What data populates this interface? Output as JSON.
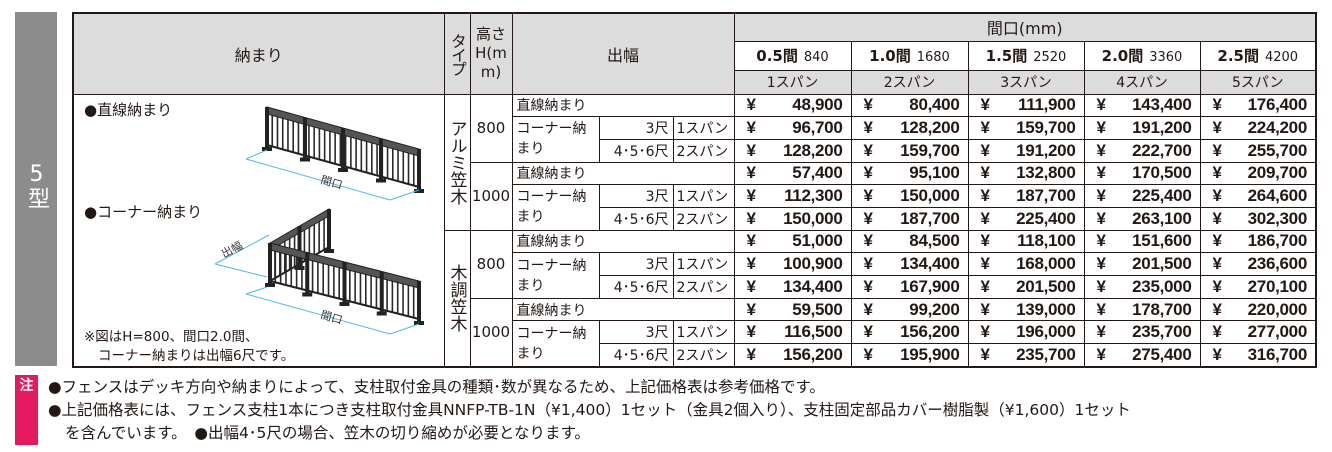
{
  "sidebar": {
    "label": "5型",
    "color": "#8c8c8c"
  },
  "table": {
    "headers": {
      "osamari": "納まり",
      "type": "タイプ",
      "height": "高さH(mm)",
      "debaba": "出幅",
      "maguchi": "間口(mm)",
      "sizes": [
        {
          "ken": "0.5間",
          "mm": "840",
          "span": "1スパン"
        },
        {
          "ken": "1.0間",
          "mm": "1680",
          "span": "2スパン"
        },
        {
          "ken": "1.5間",
          "mm": "2520",
          "span": "3スパン"
        },
        {
          "ken": "2.0間",
          "mm": "3360",
          "span": "4スパン"
        },
        {
          "ken": "2.5間",
          "mm": "4200",
          "span": "5スパン"
        }
      ]
    },
    "illustration": {
      "straight_label": "●直線納まり",
      "corner_label": "●コーナー納まり",
      "maguchi_dim": "間口",
      "debaba_dim": "出幅",
      "note_line1": "※図はH=800、間口2.0間、",
      "note_line2": "コーナー納まりは出幅6尺です。"
    },
    "labels": {
      "straight": "直線納まり",
      "corner": "コーナー納まり",
      "shaku3": "3尺",
      "shaku456": "4･5･6尺",
      "span1": "1スパン",
      "span2": "2スパン",
      "yen": "¥"
    },
    "types": [
      {
        "name": "アルミ笠木",
        "heights": [
          {
            "height": "800",
            "rows": [
              [
                "48,900",
                "80,400",
                "111,900",
                "143,400",
                "176,400"
              ],
              [
                "96,700",
                "128,200",
                "159,700",
                "191,200",
                "224,200"
              ],
              [
                "128,200",
                "159,700",
                "191,200",
                "222,700",
                "255,700"
              ]
            ]
          },
          {
            "height": "1000",
            "rows": [
              [
                "57,400",
                "95,100",
                "132,800",
                "170,500",
                "209,700"
              ],
              [
                "112,300",
                "150,000",
                "187,700",
                "225,400",
                "264,600"
              ],
              [
                "150,000",
                "187,700",
                "225,400",
                "263,100",
                "302,300"
              ]
            ]
          }
        ]
      },
      {
        "name": "木調笠木",
        "heights": [
          {
            "height": "800",
            "rows": [
              [
                "51,000",
                "84,500",
                "118,100",
                "151,600",
                "186,700"
              ],
              [
                "100,900",
                "134,400",
                "168,000",
                "201,500",
                "236,600"
              ],
              [
                "134,400",
                "167,900",
                "201,500",
                "235,000",
                "270,100"
              ]
            ]
          },
          {
            "height": "1000",
            "rows": [
              [
                "59,500",
                "99,200",
                "139,000",
                "178,700",
                "220,000"
              ],
              [
                "116,500",
                "156,200",
                "196,000",
                "235,700",
                "277,000"
              ],
              [
                "156,200",
                "195,900",
                "235,700",
                "275,400",
                "316,700"
              ]
            ]
          }
        ]
      }
    ]
  },
  "notes": {
    "badge": "注",
    "badge_color": "#e5195f",
    "line1": "●フェンスはデッキ方向や納まりによって、支柱取付金具の種類･数が異なるため、上記価格表は参考価格です。",
    "line2": "●上記価格表には、フェンス支柱1本につき支柱取付金具NNFP-TB-1N（¥1,400）1セット（金具2個入り）、支柱固定部品カバー樹脂製（¥1,600）1セット",
    "line3": "を含んでいます。　●出幅4･5尺の場合、笠木の切り縮めが必要となります。"
  },
  "colors": {
    "header_bg": "#dcdcdc",
    "dimension_line": "#4db8e8"
  }
}
